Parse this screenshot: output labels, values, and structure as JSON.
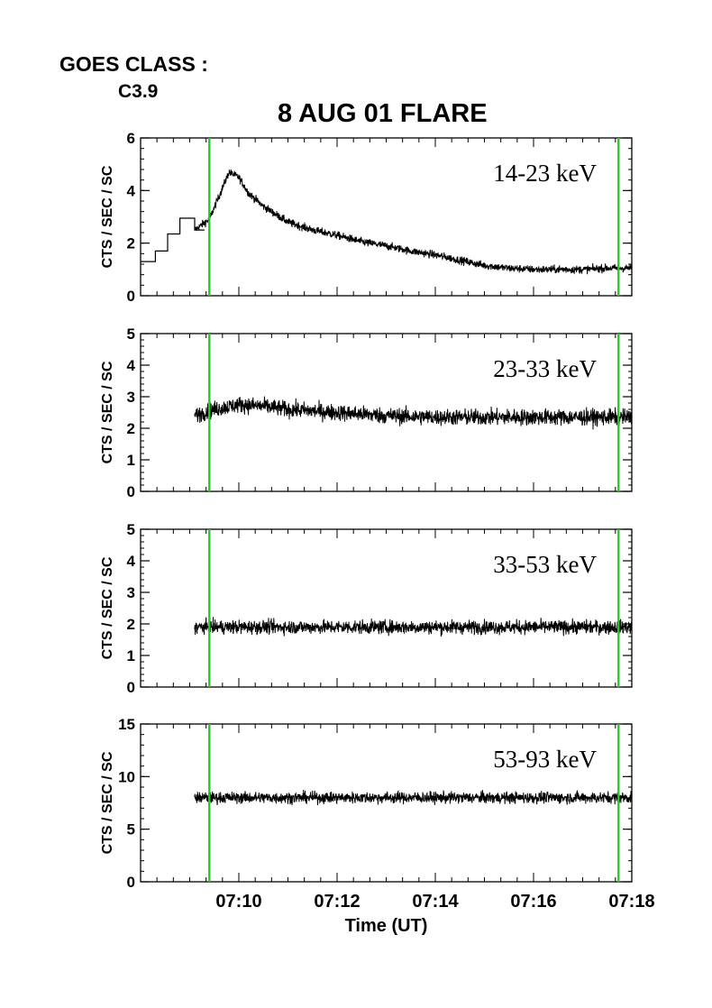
{
  "header": {
    "goes_label": "GOES CLASS :",
    "goes_class": "C3.9",
    "title": "8 AUG 01 FLARE"
  },
  "colors": {
    "marker_line": "#22cc22",
    "data_line": "#000000",
    "axis": "#000000"
  },
  "chart_data": {
    "type": "line",
    "x_axis": {
      "label": "Time (UT)",
      "range_min": [
        428.0,
        438.0
      ],
      "ticks": [
        "07:10",
        "07:12",
        "07:14",
        "07:16",
        "07:18"
      ],
      "tick_minutes": [
        430,
        432,
        434,
        436,
        438
      ]
    },
    "marker_times_min": [
      429.4,
      437.73
    ],
    "panels": [
      {
        "band": "14-23 keV",
        "ylabel": "CTS / SEC / SC",
        "ylim": [
          0,
          6
        ],
        "yticks": [
          "0",
          "2",
          "4",
          "6"
        ],
        "ytick_values": [
          0,
          2,
          4,
          6
        ],
        "pre_step": {
          "x": [
            428.0,
            428.3,
            428.55,
            428.8,
            429.1,
            429.3
          ],
          "y": [
            1.3,
            1.7,
            2.35,
            2.95,
            2.5,
            2.5
          ]
        },
        "profile": {
          "t": [
            429.1,
            429.4,
            429.6,
            429.8,
            430.0,
            430.2,
            430.5,
            431.0,
            431.5,
            432.0,
            432.5,
            433.0,
            433.5,
            434.0,
            434.5,
            435.0,
            435.5,
            436.0,
            436.5,
            437.0,
            437.5,
            438.0
          ],
          "y": [
            2.5,
            2.9,
            3.8,
            4.7,
            4.5,
            3.9,
            3.4,
            2.8,
            2.5,
            2.3,
            2.05,
            1.9,
            1.7,
            1.55,
            1.35,
            1.15,
            1.05,
            1.0,
            1.0,
            1.0,
            1.05,
            1.05
          ],
          "noise": 0.15
        }
      },
      {
        "band": "23-33 keV",
        "ylabel": "CTS / SEC / SC",
        "ylim": [
          0,
          5
        ],
        "yticks": [
          "0",
          "1",
          "2",
          "3",
          "4",
          "5"
        ],
        "ytick_values": [
          0,
          1,
          2,
          3,
          4,
          5
        ],
        "profile": {
          "t": [
            429.1,
            429.5,
            430.0,
            430.5,
            431.0,
            432.0,
            433.0,
            434.0,
            435.0,
            436.0,
            437.0,
            438.0
          ],
          "y": [
            2.4,
            2.6,
            2.75,
            2.7,
            2.6,
            2.5,
            2.4,
            2.35,
            2.35,
            2.35,
            2.35,
            2.35
          ],
          "noise": 0.26
        }
      },
      {
        "band": "33-53 keV",
        "ylabel": "CTS / SEC / SC",
        "ylim": [
          0,
          5
        ],
        "yticks": [
          "0",
          "1",
          "2",
          "3",
          "4",
          "5"
        ],
        "ytick_values": [
          0,
          1,
          2,
          3,
          4,
          5
        ],
        "profile": {
          "t": [
            429.1,
            438.0
          ],
          "y": [
            1.9,
            1.9
          ],
          "noise": 0.22
        }
      },
      {
        "band": "53-93 keV",
        "ylabel": "CTS / SEC / SC",
        "ylim": [
          0,
          15
        ],
        "yticks": [
          "0",
          "5",
          "10",
          "15"
        ],
        "ytick_values": [
          0,
          5,
          10,
          15
        ],
        "profile": {
          "t": [
            429.1,
            438.0
          ],
          "y": [
            8.0,
            8.0
          ],
          "noise": 0.55
        }
      }
    ]
  }
}
